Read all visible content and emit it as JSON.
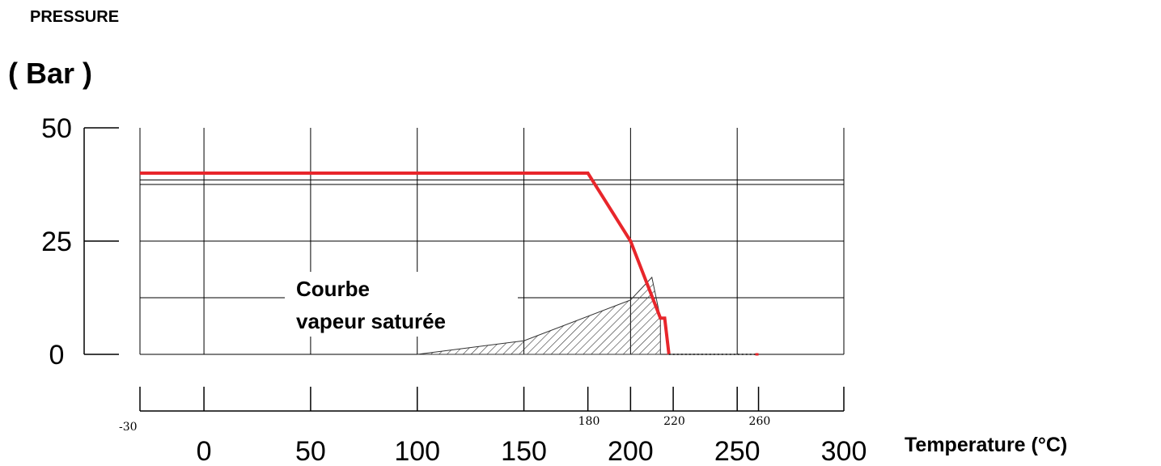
{
  "chart_data": {
    "type": "line",
    "title": "PRESSURE",
    "ylabel": "( Bar )",
    "xlabel": "Temperature (°C)",
    "xlim": [
      -30,
      300
    ],
    "ylim": [
      0,
      50
    ],
    "y_ticks": [
      {
        "value": 0,
        "label": "0"
      },
      {
        "value": 25,
        "label": "25"
      },
      {
        "value": 50,
        "label": "50"
      }
    ],
    "x_ticks": [
      {
        "value": 0,
        "label": "0"
      },
      {
        "value": 50,
        "label": "50"
      },
      {
        "value": 100,
        "label": "100"
      },
      {
        "value": 150,
        "label": "150"
      },
      {
        "value": 200,
        "label": "200"
      },
      {
        "value": 250,
        "label": "250"
      },
      {
        "value": 300,
        "label": "300"
      }
    ],
    "x_small_ticks": [
      {
        "value": -30,
        "label": "-30"
      },
      {
        "value": 180,
        "label": "180"
      },
      {
        "value": 220,
        "label": "220"
      },
      {
        "value": 260,
        "label": "260"
      }
    ],
    "grid": true,
    "series": [
      {
        "color": "#e8262b",
        "x": [
          -30,
          180,
          200,
          214,
          216,
          218
        ],
        "y": [
          40,
          40,
          25,
          8,
          8,
          0
        ]
      }
    ],
    "dotted_extension": {
      "x": [
        218,
        260
      ],
      "y": [
        0,
        0
      ]
    },
    "shaded_region": {
      "x": [
        100,
        150,
        200,
        210,
        214,
        214,
        100
      ],
      "y": [
        0,
        3,
        12,
        17,
        8,
        0,
        0
      ]
    },
    "annotation": {
      "line1": "Courbe",
      "line2": "vapeur saturée"
    }
  }
}
